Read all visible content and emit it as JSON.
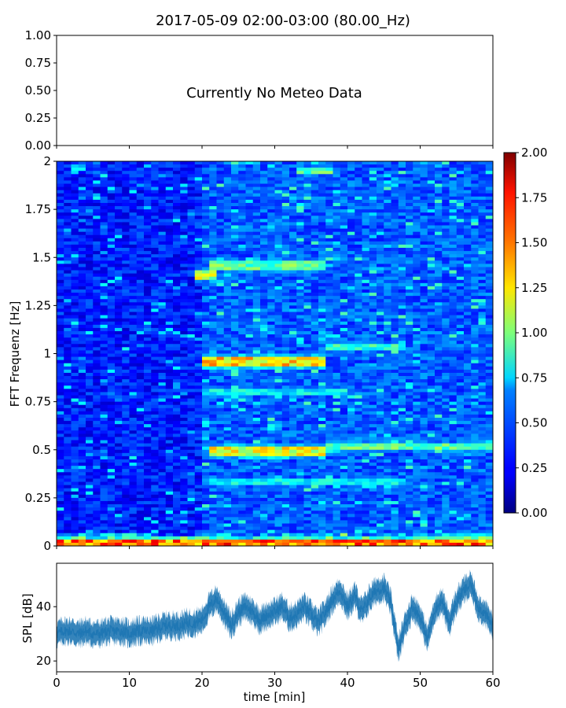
{
  "chart_data": [
    {
      "type": "line",
      "title": "2017-05-09 02:00-03:00 (80.00_Hz)",
      "annotation": "Currently No Meteo Data",
      "ylim": [
        0.0,
        1.0
      ],
      "yticks": [
        "0.00",
        "0.25",
        "0.50",
        "0.75",
        "1.00"
      ],
      "series": []
    },
    {
      "type": "heatmap",
      "ylabel": "FFT Frequenz [Hz]",
      "xlim": [
        0,
        60
      ],
      "ylim": [
        0,
        2
      ],
      "yticks": [
        "0",
        "0.25",
        "0.5",
        "0.75",
        "1",
        "1.25",
        "1.5",
        "1.75",
        "2"
      ],
      "colormap": "jet",
      "colorbar": {
        "range": [
          0.0,
          2.0
        ],
        "ticks": [
          "0.00",
          "0.25",
          "0.50",
          "0.75",
          "1.00",
          "1.25",
          "1.50",
          "1.75",
          "2.00"
        ]
      },
      "features": [
        {
          "freq": 0.01,
          "t_start": 0,
          "t_end": 60,
          "level": 1.5
        },
        {
          "freq": 0.49,
          "t_start": 21,
          "t_end": 37,
          "level": 1.3
        },
        {
          "freq": 0.52,
          "t_start": 37,
          "t_end": 60,
          "level": 1.0
        },
        {
          "freq": 0.96,
          "t_start": 20,
          "t_end": 37,
          "level": 1.4
        },
        {
          "freq": 1.03,
          "t_start": 37,
          "t_end": 48,
          "level": 0.9
        },
        {
          "freq": 1.41,
          "t_start": 19,
          "t_end": 22,
          "level": 1.2
        },
        {
          "freq": 1.46,
          "t_start": 21,
          "t_end": 37,
          "level": 1.0
        },
        {
          "freq": 0.8,
          "t_start": 20,
          "t_end": 40,
          "level": 0.8
        },
        {
          "freq": 0.33,
          "t_start": 21,
          "t_end": 48,
          "level": 0.8
        },
        {
          "freq": 1.95,
          "t_start": 33,
          "t_end": 38,
          "level": 1.0
        }
      ]
    },
    {
      "type": "line",
      "xlabel": "time [min]",
      "ylabel": "SPL [dB]",
      "xlim": [
        0,
        60
      ],
      "ylim": [
        16,
        56
      ],
      "xticks": [
        "0",
        "10",
        "20",
        "30",
        "40",
        "50",
        "60"
      ],
      "yticks": [
        "20",
        "40"
      ],
      "color": "#1f77b4",
      "series": [
        {
          "x": [
            0,
            1,
            2,
            3,
            4,
            5,
            6,
            7,
            8,
            9,
            10,
            11,
            12,
            13,
            14,
            15,
            16,
            17,
            18,
            19,
            20,
            21,
            22,
            23,
            24,
            25,
            26,
            27,
            28,
            29,
            30,
            31,
            32,
            33,
            34,
            35,
            36,
            37,
            38,
            39,
            40,
            41,
            42,
            43,
            44,
            45,
            46,
            47,
            48,
            49,
            50,
            51,
            52,
            53,
            54,
            55,
            56,
            57,
            58,
            59,
            60
          ],
          "values": [
            30,
            31,
            31,
            30,
            31,
            30,
            30,
            31,
            31,
            31,
            30,
            31,
            31,
            31,
            32,
            33,
            33,
            33,
            34,
            34,
            35,
            40,
            43,
            38,
            33,
            38,
            40,
            38,
            35,
            37,
            38,
            40,
            36,
            37,
            40,
            37,
            34,
            38,
            43,
            46,
            40,
            44,
            38,
            43,
            46,
            47,
            41,
            24,
            34,
            40,
            36,
            28,
            39,
            42,
            34,
            42,
            46,
            48,
            40,
            37,
            33
          ]
        }
      ]
    }
  ]
}
